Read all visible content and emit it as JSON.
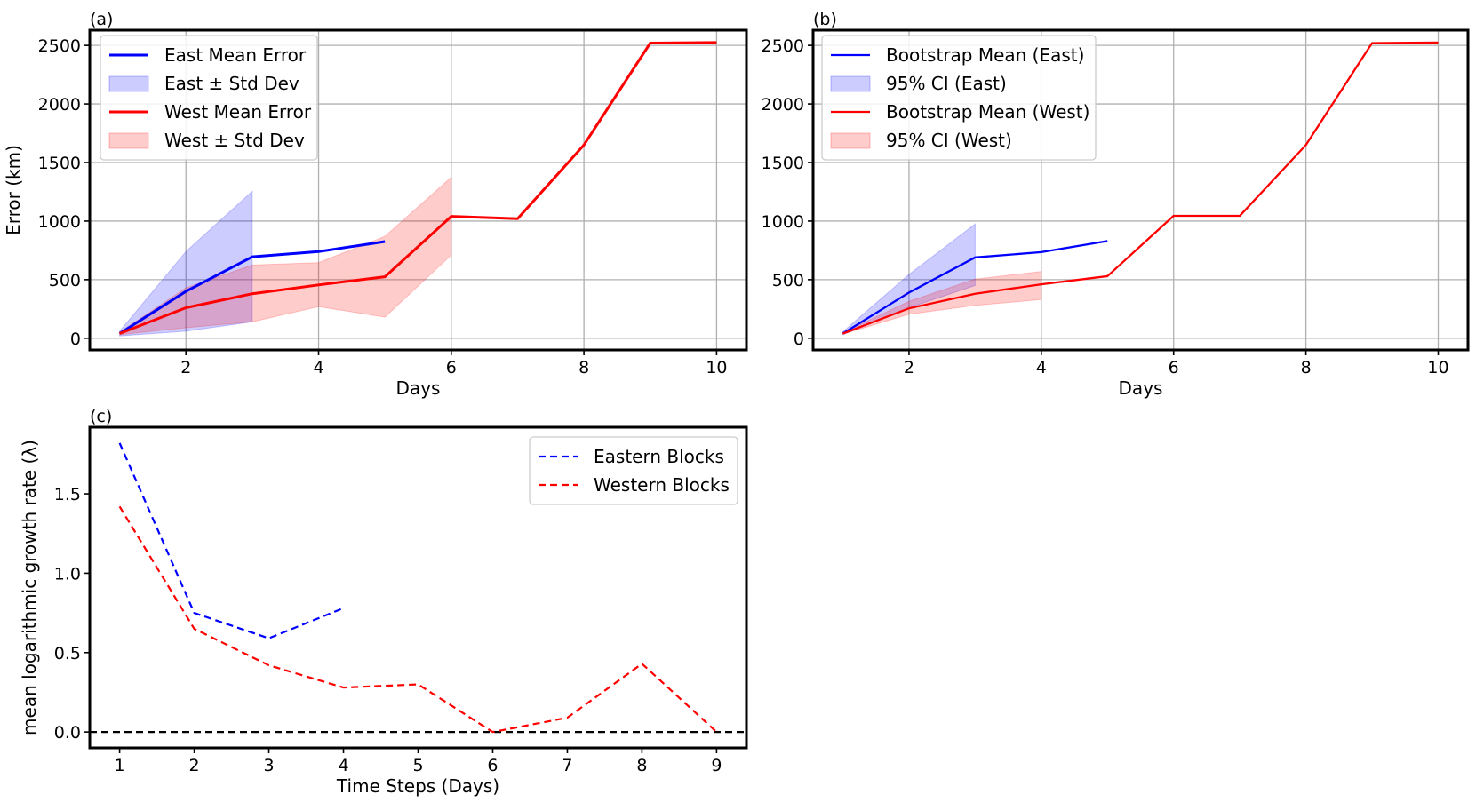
{
  "chart_data": [
    {
      "id": "a",
      "type": "line",
      "panel_label": "(a)",
      "xlabel": "Days",
      "ylabel": "Error (km)",
      "xlim": [
        0.55,
        10.45
      ],
      "ylim": [
        -100,
        2630
      ],
      "xticks": [
        2,
        4,
        6,
        8,
        10
      ],
      "yticks": [
        0,
        500,
        1000,
        1500,
        2000,
        2500
      ],
      "grid": true,
      "legend_position": "top-left",
      "series": [
        {
          "name": "East Mean Error",
          "kind": "line",
          "color": "#0000ff",
          "x": [
            1,
            2,
            3,
            4,
            5
          ],
          "y": [
            40,
            400,
            695,
            740,
            825
          ]
        },
        {
          "name": "East ± Std Dev",
          "kind": "band",
          "color": "#0000ff",
          "x": [
            1,
            2,
            3
          ],
          "lower": [
            20,
            60,
            140
          ],
          "upper": [
            60,
            740,
            1255
          ]
        },
        {
          "name": "West Mean Error",
          "kind": "line",
          "color": "#ff0000",
          "x": [
            1,
            2,
            3,
            4,
            5,
            6,
            7,
            8,
            9,
            10
          ],
          "y": [
            40,
            260,
            380,
            455,
            525,
            1040,
            1020,
            1650,
            2520,
            2525
          ]
        },
        {
          "name": "West ± Std Dev",
          "kind": "band",
          "color": "#ff0000",
          "x": [
            1,
            2,
            3,
            4,
            5,
            6
          ],
          "lower": [
            30,
            90,
            140,
            270,
            180,
            710
          ],
          "upper": [
            50,
            430,
            625,
            645,
            870,
            1375
          ]
        }
      ]
    },
    {
      "id": "b",
      "type": "line",
      "panel_label": "(b)",
      "xlabel": "Days",
      "ylabel": "",
      "xlim": [
        0.55,
        10.45
      ],
      "ylim": [
        -100,
        2630
      ],
      "xticks": [
        2,
        4,
        6,
        8,
        10
      ],
      "yticks": [
        0,
        500,
        1000,
        1500,
        2000,
        2500
      ],
      "grid": true,
      "legend_position": "top-left",
      "series": [
        {
          "name": "Bootstrap Mean (East)",
          "kind": "line",
          "color": "#0000ff",
          "x": [
            1,
            2,
            3,
            4,
            5
          ],
          "y": [
            40,
            390,
            690,
            735,
            830
          ]
        },
        {
          "name": "95% CI (East)",
          "kind": "band",
          "color": "#0000ff",
          "x": [
            1,
            2,
            3
          ],
          "lower": [
            30,
            260,
            450
          ],
          "upper": [
            55,
            545,
            975
          ]
        },
        {
          "name": "Bootstrap Mean (West)",
          "kind": "line",
          "color": "#ff0000",
          "x": [
            1,
            2,
            3,
            4,
            5,
            6,
            7,
            8,
            9,
            10
          ],
          "y": [
            40,
            255,
            380,
            460,
            530,
            1045,
            1045,
            1650,
            2520,
            2525
          ]
        },
        {
          "name": "95% CI (West)",
          "kind": "band",
          "color": "#ff0000",
          "x": [
            1,
            2,
            3,
            4
          ],
          "lower": [
            35,
            205,
            280,
            330
          ],
          "upper": [
            50,
            315,
            505,
            570
          ]
        }
      ]
    },
    {
      "id": "c",
      "type": "line",
      "panel_label": "(c)",
      "xlabel": "Time Steps (Days)",
      "ylabel": "mean logarithmic growth rate (λ)",
      "xlim": [
        0.6,
        9.4
      ],
      "ylim": [
        -0.1,
        1.92
      ],
      "xticks": [
        1,
        2,
        3,
        4,
        5,
        6,
        7,
        8,
        9
      ],
      "yticks": [
        0.0,
        0.5,
        1.0,
        1.5
      ],
      "ytick_labels": [
        "0.0",
        "0.5",
        "1.0",
        "1.5"
      ],
      "grid": false,
      "legend_position": "top-right",
      "reference_line": {
        "y": 0,
        "color": "#000000",
        "style": "dashed"
      },
      "series": [
        {
          "name": "Eastern Blocks",
          "kind": "line",
          "style": "dashed",
          "color": "#0000ff",
          "x": [
            1,
            2,
            3,
            4
          ],
          "y": [
            1.82,
            0.75,
            0.59,
            0.78
          ]
        },
        {
          "name": "Western Blocks",
          "kind": "line",
          "style": "dashed",
          "color": "#ff0000",
          "x": [
            1,
            2,
            3,
            4,
            5,
            6,
            7,
            8,
            9
          ],
          "y": [
            1.42,
            0.65,
            0.42,
            0.28,
            0.3,
            0.0,
            0.09,
            0.43,
            0.0
          ]
        }
      ]
    }
  ]
}
